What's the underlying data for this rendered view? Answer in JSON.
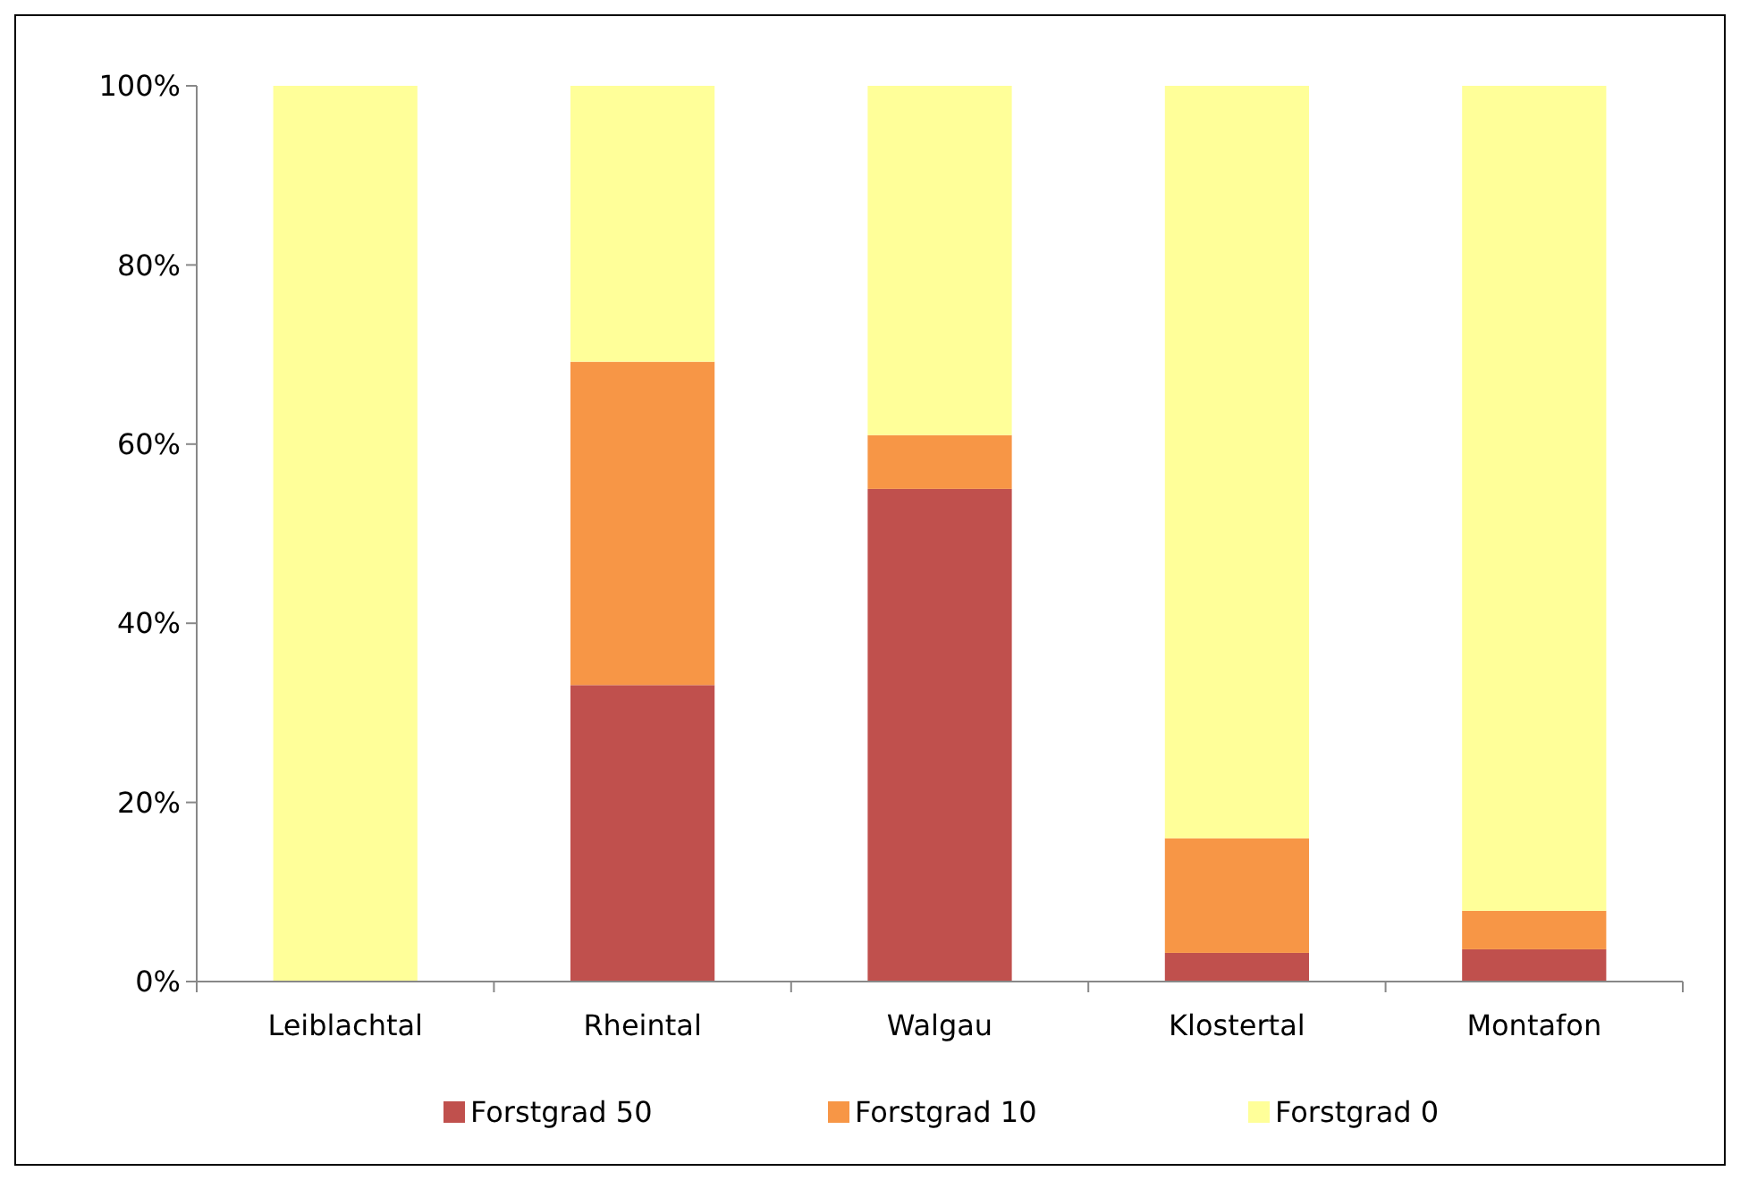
{
  "chart_data": {
    "type": "bar",
    "stacked": true,
    "categories": [
      "Leiblachtal",
      "Rheintal",
      "Walgau",
      "Klostertal",
      "Montafon"
    ],
    "series": [
      {
        "name": "Forstgrad 50",
        "color": "#c0504d",
        "values": [
          0,
          33.1,
          55,
          3.2,
          3.6
        ]
      },
      {
        "name": "Forstgrad 10",
        "color": "#f79646",
        "values": [
          0,
          36.1,
          6,
          12.8,
          4.3
        ]
      },
      {
        "name": "Forstgrad 0",
        "color": "#ffff99",
        "values": [
          100,
          30.8,
          39,
          84,
          92.1
        ]
      }
    ],
    "ylim": [
      0,
      100
    ],
    "yticks": [
      {
        "value": 0,
        "label": "0%"
      },
      {
        "value": 20,
        "label": "20%"
      },
      {
        "value": 40,
        "label": "40%"
      },
      {
        "value": 60,
        "label": "60%"
      },
      {
        "value": 80,
        "label": "80%"
      },
      {
        "value": 100,
        "label": "100%"
      }
    ],
    "grid": false,
    "legend": "bottom"
  }
}
